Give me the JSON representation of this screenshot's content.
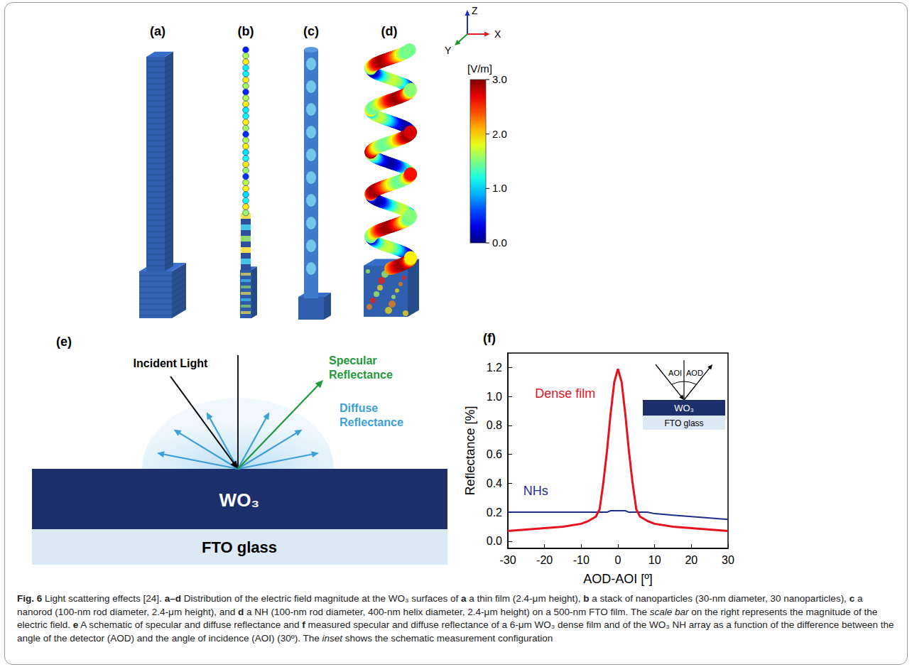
{
  "panel_labels": [
    "(a)",
    "(b)",
    "(c)",
    "(d)",
    "(e)",
    "(f)"
  ],
  "axes_indicator": {
    "z": "Z",
    "x": "X",
    "y": "Y"
  },
  "colorbar": {
    "unit": "[V/m]",
    "range": [
      0,
      3
    ],
    "ticks": [
      {
        "value": 0,
        "label": "0.0"
      },
      {
        "value": 1,
        "label": "1.0"
      },
      {
        "value": 2,
        "label": "2.0"
      },
      {
        "value": 3,
        "label": "3.0"
      }
    ]
  },
  "schematic_e": {
    "incident": "Incident Light",
    "specular": "Specular Reflectance",
    "diffuse": "Diffuse Reflectance",
    "layer": "WO₃",
    "substrate": "FTO glass"
  },
  "chart_data": {
    "type": "line",
    "xlabel": "AOD-AOI [º]",
    "ylabel": "Reflectance [%]",
    "x": [
      -30,
      -25,
      -20,
      -15,
      -10,
      -8,
      -6,
      -5,
      -4,
      -3,
      -2,
      -1,
      0,
      1,
      2,
      3,
      4,
      5,
      6,
      8,
      10,
      15,
      20,
      25,
      30
    ],
    "series": [
      {
        "name": "Dense film",
        "color": "#e8121e",
        "values": [
          0.07,
          0.08,
          0.09,
          0.1,
          0.12,
          0.14,
          0.17,
          0.22,
          0.4,
          0.62,
          0.88,
          1.1,
          1.19,
          1.1,
          0.88,
          0.62,
          0.4,
          0.22,
          0.17,
          0.14,
          0.12,
          0.1,
          0.09,
          0.08,
          0.07
        ]
      },
      {
        "name": "NHs",
        "color": "#1f2d8a",
        "values": [
          0.2,
          0.2,
          0.2,
          0.2,
          0.2,
          0.2,
          0.2,
          0.2,
          0.2,
          0.2,
          0.21,
          0.21,
          0.21,
          0.21,
          0.21,
          0.2,
          0.2,
          0.2,
          0.2,
          0.2,
          0.19,
          0.18,
          0.17,
          0.16,
          0.15
        ]
      }
    ],
    "xlim": [
      -30,
      30
    ],
    "xticks": [
      -30,
      -20,
      -10,
      0,
      10,
      20,
      30
    ],
    "ylim": [
      -0.05,
      1.3
    ],
    "yticks": [
      {
        "value": 0,
        "label": "0.0"
      },
      {
        "value": 0.2,
        "label": "0.2"
      },
      {
        "value": 0.4,
        "label": "0.4"
      },
      {
        "value": 0.6,
        "label": "0.6"
      },
      {
        "value": 0.8,
        "label": "0.8"
      },
      {
        "value": 1,
        "label": "1.0"
      },
      {
        "value": 1.2,
        "label": "1.2"
      }
    ],
    "grid": false,
    "inset": {
      "left": "AOI",
      "right": "AOD",
      "layer": "WO₃",
      "substrate": "FTO glass"
    }
  },
  "caption": [
    {
      "text": "Fig. 6",
      "style": "bold"
    },
    {
      "text": " Light scattering effects [24]. ",
      "style": "normal"
    },
    {
      "text": "a–d",
      "style": "bold"
    },
    {
      "text": " Distribution of the electric field magnitude at the WO₃ surfaces of ",
      "style": "normal"
    },
    {
      "text": "a",
      "style": "bold"
    },
    {
      "text": " a thin film (2.4-μm height), ",
      "style": "normal"
    },
    {
      "text": "b",
      "style": "bold"
    },
    {
      "text": " a stack of nanoparticles (30-nm diameter, 30 nanoparticles), ",
      "style": "normal"
    },
    {
      "text": "c",
      "style": "bold"
    },
    {
      "text": " a nanorod (100-nm rod diameter, 2.4-μm height), and ",
      "style": "normal"
    },
    {
      "text": "d",
      "style": "bold"
    },
    {
      "text": " a NH (100-nm rod diameter, 400-nm helix diameter, 2.4-μm height) on a 500-nm FTO film. The ",
      "style": "normal"
    },
    {
      "text": "scale bar",
      "style": "italic"
    },
    {
      "text": " on the right represents the magnitude of the electric field. ",
      "style": "normal"
    },
    {
      "text": "e",
      "style": "bold"
    },
    {
      "text": " A schematic of specular and diffuse reflectance and ",
      "style": "normal"
    },
    {
      "text": "f",
      "style": "bold"
    },
    {
      "text": " measured specular and diffuse reflectance of a 6-μm WO₃ dense film and of the WO₃ NH array as a function of the difference between the angle of the detector (AOD) and the angle of incidence (AOI) (30º). The ",
      "style": "normal"
    },
    {
      "text": "inset",
      "style": "italic"
    },
    {
      "text": " shows the schematic measurement configuration",
      "style": "normal"
    }
  ]
}
